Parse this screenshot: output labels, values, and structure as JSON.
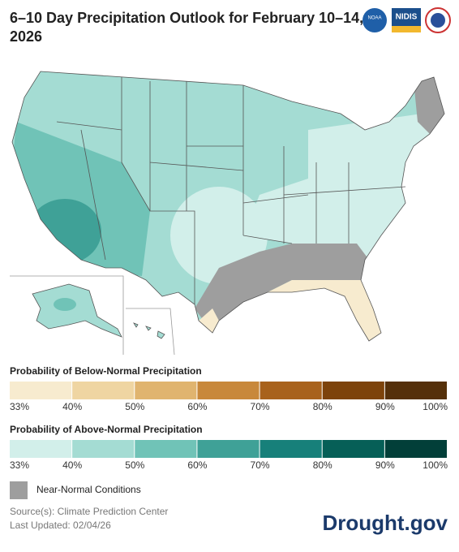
{
  "header": {
    "title_line1": "6–10 Day Precipitation Outlook for February 10–14,",
    "title_line2": "2026",
    "logos": [
      "NOAA",
      "NIDIS"
    ]
  },
  "legend_below": {
    "title": "Probability of Below-Normal Precipitation",
    "labels": [
      "33%",
      "40%",
      "50%",
      "60%",
      "70%",
      "80%",
      "90%",
      "100%"
    ],
    "colors": [
      "#f7ebcf",
      "#efd5a2",
      "#e0b46f",
      "#c8883b",
      "#a8621c",
      "#7d430b",
      "#55300a"
    ]
  },
  "legend_above": {
    "title": "Probability of Above-Normal Precipitation",
    "labels": [
      "33%",
      "40%",
      "50%",
      "60%",
      "70%",
      "80%",
      "90%",
      "100%"
    ],
    "colors": [
      "#d2efea",
      "#a4dcd3",
      "#70c3b7",
      "#3fa197",
      "#17807a",
      "#065f57",
      "#023f39"
    ]
  },
  "near_normal": {
    "label": "Near-Normal Conditions",
    "color": "#9e9e9e"
  },
  "footer": {
    "source": "Source(s): Climate Prediction Center",
    "updated": "Last Updated: 02/04/26",
    "brand": "Drought.gov"
  }
}
